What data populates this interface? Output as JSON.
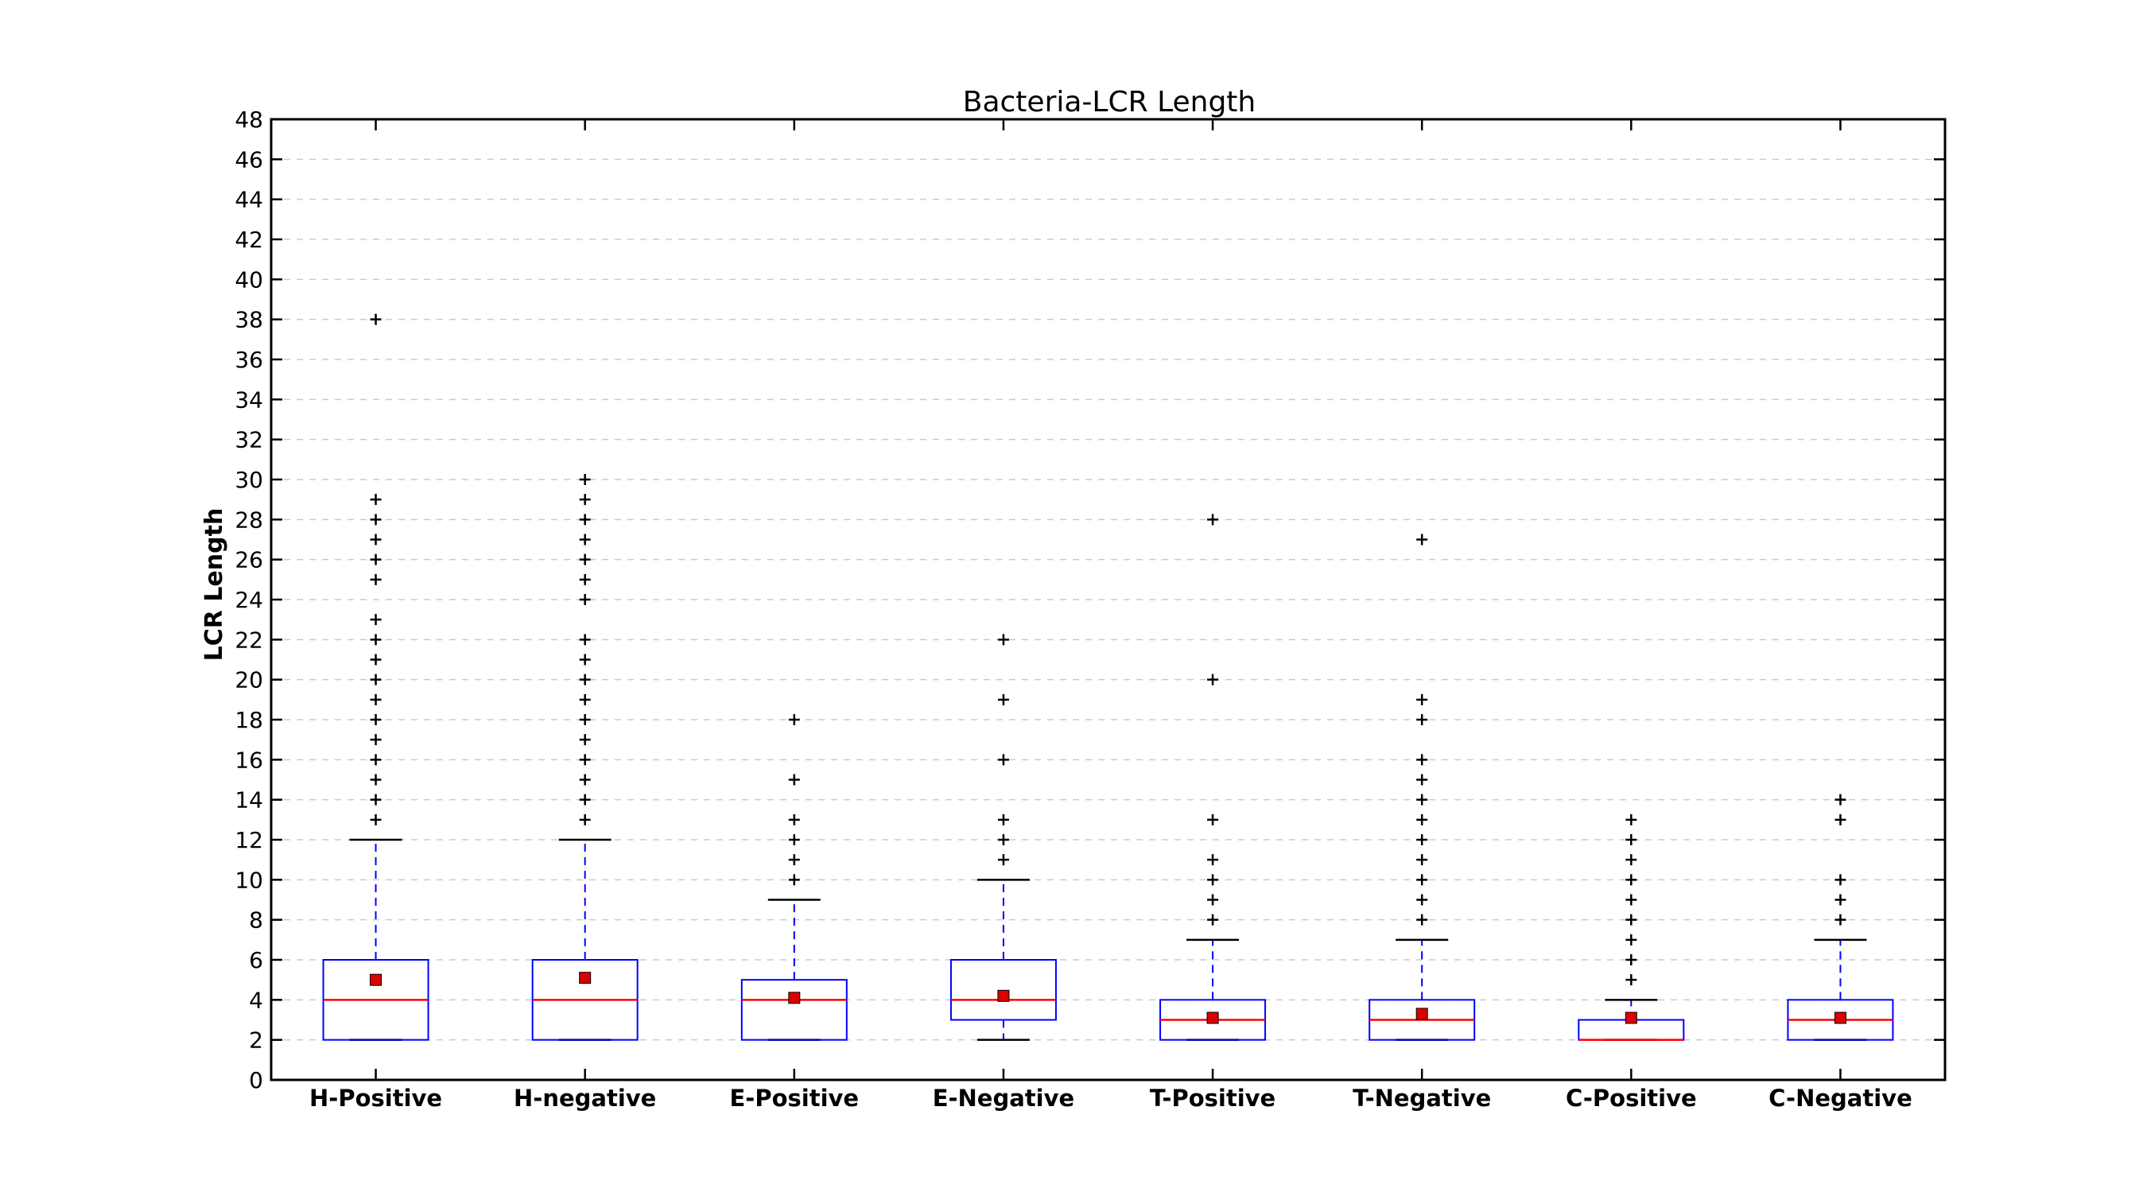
{
  "chart_data": {
    "type": "box",
    "title": "Bacteria-LCR Length",
    "xlabel": "",
    "ylabel": "LCR Length",
    "ylim": [
      0,
      48
    ],
    "yticks": [
      0,
      2,
      4,
      6,
      8,
      10,
      12,
      14,
      16,
      18,
      20,
      22,
      24,
      26,
      28,
      30,
      32,
      34,
      36,
      38,
      40,
      42,
      44,
      46,
      48
    ],
    "grid": "horizontal dashed",
    "colors": {
      "box": "#0000ff",
      "median": "#ff0000",
      "mean": "#dd0000",
      "whisker": "#0000ff",
      "cap": "#000000",
      "flier": "#000000",
      "axes": "#000000",
      "grid": "#c8c8dc"
    },
    "categories": [
      "H-Positive",
      "H-negative",
      "E-Positive",
      "E-Negative",
      "T-Positive",
      "T-Negative",
      "C-Positive",
      "C-Negative"
    ],
    "boxes": [
      {
        "name": "H-Positive",
        "whisker_low": 2,
        "q1": 2,
        "median": 4,
        "q3": 6,
        "whisker_high": 12,
        "mean": 5.0,
        "fliers": [
          13,
          14,
          15,
          16,
          17,
          18,
          19,
          20,
          21,
          22,
          23,
          25,
          26,
          27,
          28,
          29,
          38
        ]
      },
      {
        "name": "H-negative",
        "whisker_low": 2,
        "q1": 2,
        "median": 4,
        "q3": 6,
        "whisker_high": 12,
        "mean": 5.1,
        "fliers": [
          13,
          14,
          15,
          16,
          17,
          18,
          19,
          20,
          21,
          22,
          24,
          25,
          26,
          27,
          28,
          29,
          30
        ]
      },
      {
        "name": "E-Positive",
        "whisker_low": 2,
        "q1": 2,
        "median": 4,
        "q3": 5,
        "whisker_high": 9,
        "mean": 4.1,
        "fliers": [
          10,
          11,
          12,
          13,
          15,
          18
        ]
      },
      {
        "name": "E-Negative",
        "whisker_low": 2,
        "q1": 3,
        "median": 4,
        "q3": 6,
        "whisker_high": 10,
        "mean": 4.2,
        "fliers": [
          11,
          12,
          13,
          16,
          19,
          22
        ]
      },
      {
        "name": "T-Positive",
        "whisker_low": 2,
        "q1": 2,
        "median": 3,
        "q3": 4,
        "whisker_high": 7,
        "mean": 3.1,
        "fliers": [
          8,
          9,
          10,
          11,
          13,
          20,
          28
        ]
      },
      {
        "name": "T-Negative",
        "whisker_low": 2,
        "q1": 2,
        "median": 3,
        "q3": 4,
        "whisker_high": 7,
        "mean": 3.3,
        "fliers": [
          8,
          9,
          10,
          11,
          12,
          13,
          14,
          15,
          16,
          18,
          19,
          27
        ]
      },
      {
        "name": "C-Positive",
        "whisker_low": 2,
        "q1": 2,
        "median": 2,
        "q3": 3,
        "whisker_high": 4,
        "mean": 3.1,
        "fliers": [
          5,
          6,
          7,
          8,
          9,
          10,
          11,
          12,
          13
        ]
      },
      {
        "name": "C-Negative",
        "whisker_low": 2,
        "q1": 2,
        "median": 3,
        "q3": 4,
        "whisker_high": 7,
        "mean": 3.1,
        "fliers": [
          8,
          9,
          10,
          13,
          14
        ]
      }
    ]
  }
}
